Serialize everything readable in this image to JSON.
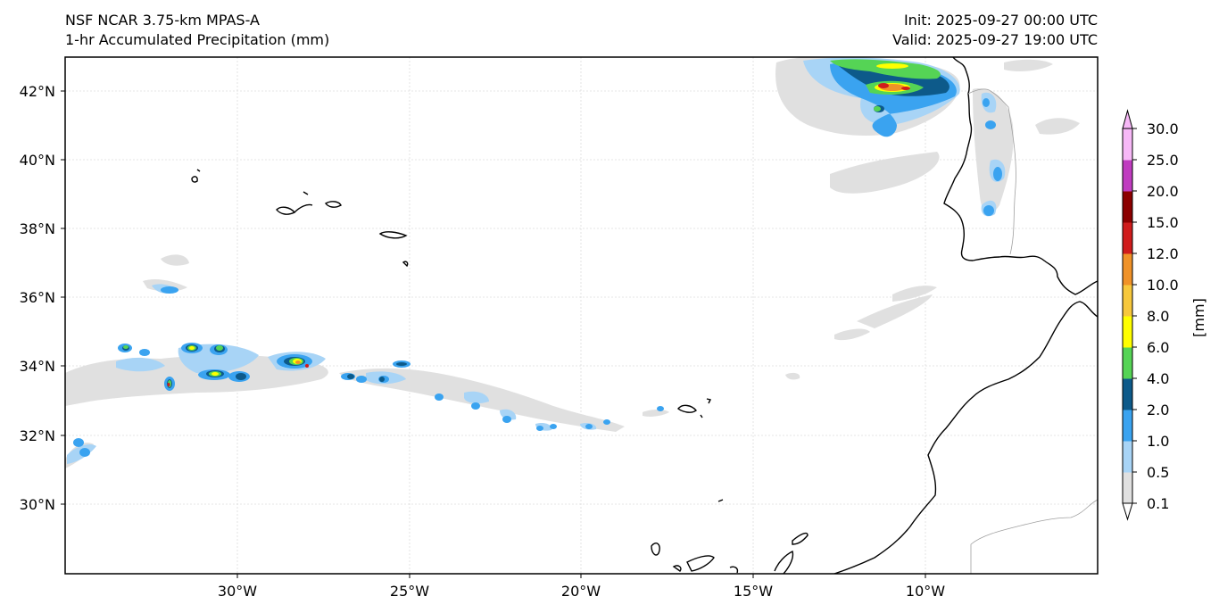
{
  "title": {
    "left_line1": "NSF NCAR 3.75-km MPAS-A",
    "left_line2": "1-hr Accumulated Precipitation (mm)",
    "right_line1": "Init: 2025-09-27 00:00 UTC",
    "right_line2": "Valid: 2025-09-27 19:00 UTC"
  },
  "axes": {
    "lon_labels": [
      "30°W",
      "25°W",
      "20°W",
      "15°W",
      "10°W"
    ],
    "lat_labels": [
      "42°N",
      "40°N",
      "38°N",
      "36°N",
      "34°N",
      "32°N",
      "30°N"
    ],
    "lon_values": [
      -30,
      -25,
      -20,
      -15,
      -10
    ],
    "lat_values": [
      42,
      40,
      38,
      36,
      34,
      32,
      30
    ],
    "lon_range": [
      -35,
      -5
    ],
    "lat_range": [
      28,
      43
    ]
  },
  "colorbar": {
    "unit_label": "[mm]",
    "levels": [
      "0.1",
      "0.5",
      "1.0",
      "2.0",
      "4.0",
      "6.0",
      "8.0",
      "10.0",
      "12.0",
      "15.0",
      "20.0",
      "25.0",
      "30.0"
    ],
    "colors": [
      "#e0e0e0",
      "#a8d4f6",
      "#3aa3f0",
      "#0d5a8a",
      "#55d455",
      "#ffff00",
      "#f7c83c",
      "#f09228",
      "#d01c1c",
      "#8c0000",
      "#c03cc0",
      "#f7b8f7"
    ]
  },
  "features": {
    "land_color": "#ffffff",
    "coast_color": "#000000",
    "border_color": "#a0a0a0"
  }
}
